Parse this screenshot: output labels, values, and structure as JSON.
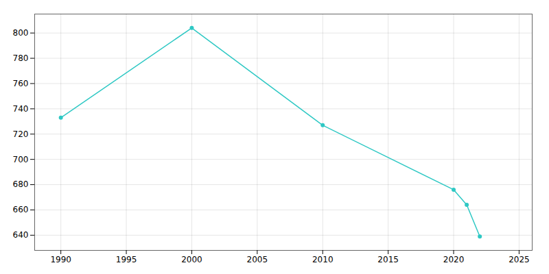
{
  "chart_data": {
    "type": "line",
    "x": [
      1990,
      2000,
      2010,
      2020,
      2021,
      2022
    ],
    "values": [
      733,
      804,
      727,
      676,
      664,
      639
    ],
    "color": "#2ec8c4",
    "marker": "circle",
    "xlim": [
      1988,
      2026
    ],
    "ylim": [
      628,
      815
    ],
    "xticks": [
      1990,
      1995,
      2000,
      2005,
      2010,
      2015,
      2020,
      2025
    ],
    "yticks": [
      640,
      660,
      680,
      700,
      720,
      740,
      760,
      780,
      800
    ],
    "grid": true
  }
}
